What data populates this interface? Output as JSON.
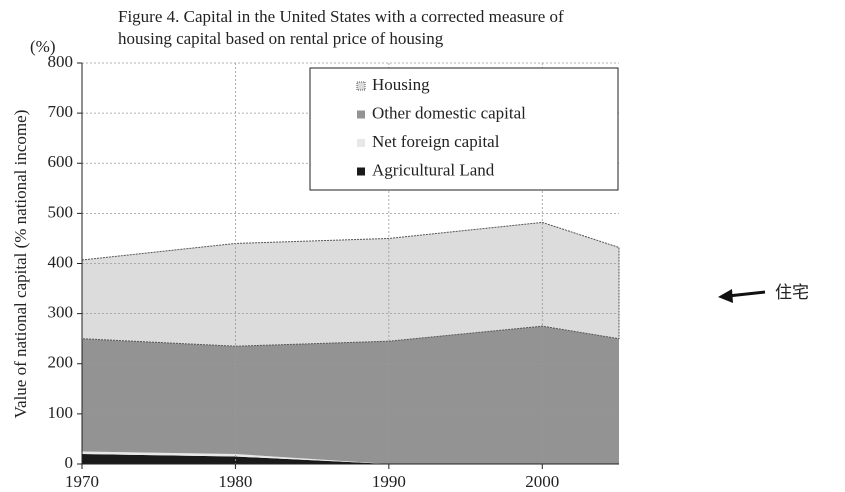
{
  "chart_data": {
    "type": "stacked-area",
    "title": [
      "Figure 4. Capital in the United States with a corrected measure of",
      "housing capital based on rental price of housing"
    ],
    "y_unit": "(%)",
    "ylabel": "Value of national capital (% national income)",
    "annotation": "住宅",
    "x": [
      1970,
      1980,
      1990,
      2000,
      2005
    ],
    "series": [
      {
        "name": "Housing",
        "color": "#dcdcdc",
        "values": [
          157,
          205,
          205,
          207,
          182
        ]
      },
      {
        "name": "Other domestic capital",
        "color": "#939393",
        "values": [
          225,
          215,
          245,
          275,
          250
        ]
      },
      {
        "name": "Net foreign capital",
        "color": "#e8e8e8",
        "values": [
          5,
          5,
          0,
          0,
          0
        ]
      },
      {
        "name": "Agricultural Land",
        "color": "#1a1a1a",
        "values": [
          20,
          15,
          0,
          0,
          0
        ]
      }
    ],
    "xlim": [
      1970,
      2005
    ],
    "xticks": [
      1970,
      1980,
      1990,
      2000
    ],
    "ylim": [
      0,
      800
    ],
    "yticks": [
      0,
      100,
      200,
      300,
      400,
      500,
      600,
      700,
      800
    ],
    "grid": true,
    "legend": "top-right"
  }
}
